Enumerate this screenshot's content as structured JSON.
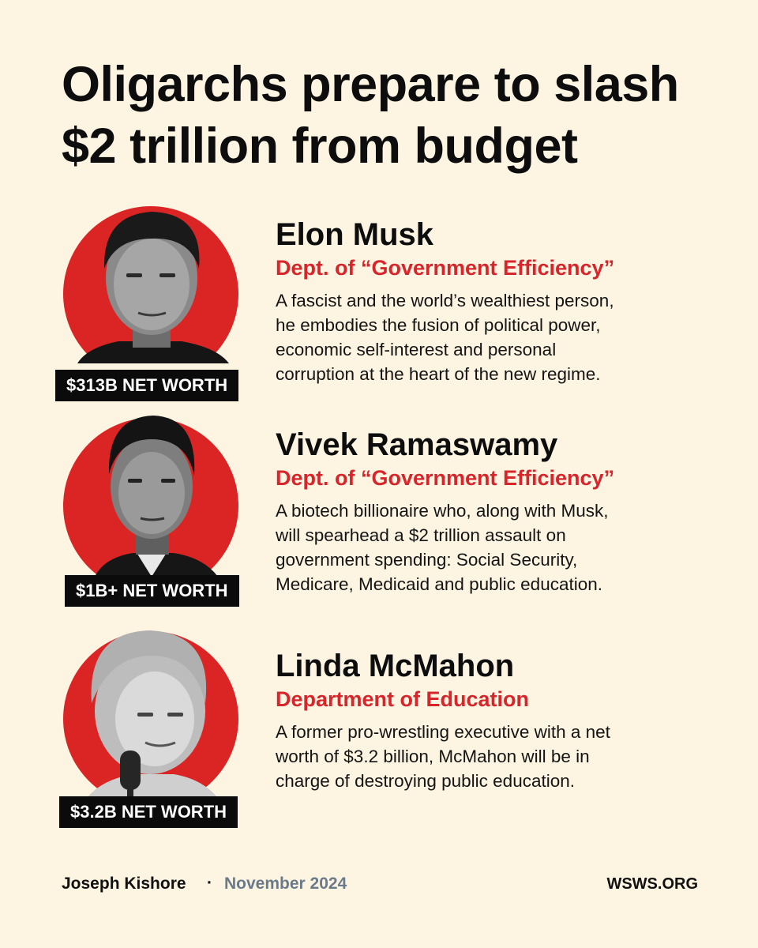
{
  "title": {
    "line1": "Oligarchs prepare to slash",
    "line2": "$2 trillion from budget"
  },
  "people": [
    {
      "name": "Elon Musk",
      "role": "Dept. of “Government Efficiency”",
      "description": [
        "A fascist and the world’s wealthiest person,",
        "he embodies the fusion of political power,",
        "economic self-interest and personal",
        "corruption at the heart of the new regime."
      ],
      "net_worth": "$313B NET WORTH"
    },
    {
      "name": "Vivek Ramaswamy",
      "role": "Dept. of “Government Efficiency”",
      "description": [
        "A biotech billionaire who, along with Musk,",
        "will spearhead a $2 trillion assault on",
        "government spending: Social Security,",
        "Medicare, Medicaid and public education."
      ],
      "net_worth": "$1B+ NET WORTH"
    },
    {
      "name": "Linda McMahon",
      "role": "Department of Education",
      "description": [
        "A former pro-wrestling executive with a net",
        "worth of $3.2 billion, McMahon will be in",
        "charge of destroying public education."
      ],
      "net_worth": "$3.2B NET WORTH"
    }
  ],
  "footer": {
    "author": "Joseph Kishore",
    "separator": "·",
    "date": "November 2024",
    "site": "WSWS.ORG"
  },
  "colors": {
    "background": "#fdf5e2",
    "accent_red": "#d7262b",
    "badge_black": "#0b0b0b",
    "date_gray": "#6b7a8a"
  }
}
